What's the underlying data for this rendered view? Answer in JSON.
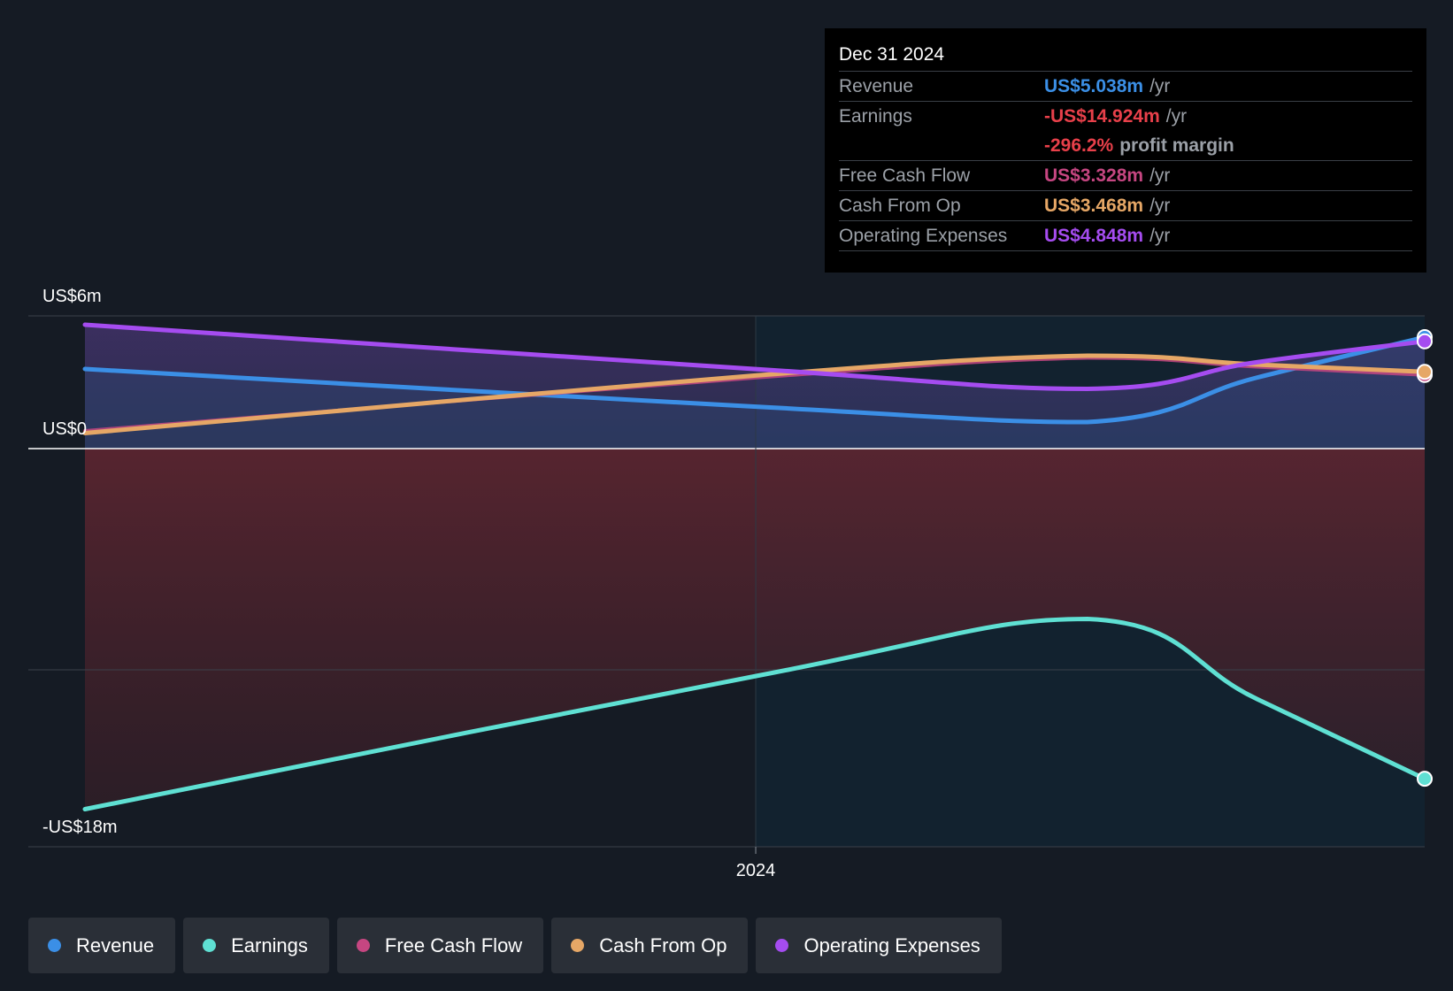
{
  "chart_data": {
    "type": "line",
    "title": "",
    "xlabel": "",
    "ylabel": "",
    "x": [
      "2022-12-31",
      "2023-12-31",
      "2024-06-30",
      "2024-09-30",
      "2024-12-31"
    ],
    "xticks": [
      "2024"
    ],
    "xtick_values": [
      "2024-01-01"
    ],
    "ylim": [
      -18,
      6
    ],
    "yticks": [
      {
        "label": "US$6m",
        "value": 6
      },
      {
        "label": "US$0",
        "value": 0
      },
      {
        "label": "-US$18m",
        "value": -18
      }
    ],
    "gridlines": [
      6,
      0,
      -10,
      -18
    ],
    "highlight_range": [
      "2024-01-01",
      "2024-12-31"
    ],
    "series": [
      {
        "name": "Revenue",
        "color": "#3b8fe6",
        "values": [
          3.6,
          1.9,
          1.2,
          3.2,
          5.038
        ]
      },
      {
        "name": "Earnings",
        "color": "#5fe0d3",
        "values": [
          -16.3,
          -10.3,
          -7.7,
          -11.3,
          -14.924
        ]
      },
      {
        "name": "Free Cash Flow",
        "color": "#c64681",
        "values": [
          0.8,
          3.2,
          4.1,
          3.7,
          3.328
        ]
      },
      {
        "name": "Cash From Op",
        "color": "#e6a766",
        "values": [
          0.7,
          3.3,
          4.2,
          3.8,
          3.468
        ]
      },
      {
        "name": "Operating Expenses",
        "color": "#a54cf0",
        "values": [
          5.6,
          3.6,
          2.7,
          3.9,
          4.848
        ]
      }
    ]
  },
  "tooltip": {
    "date": "Dec 31 2024",
    "rows": [
      {
        "name": "Revenue",
        "value": "US$5.038m",
        "unit": "/yr",
        "color": "#3b8fe6"
      },
      {
        "name": "Earnings",
        "value": "-US$14.924m",
        "unit": "/yr",
        "color": "#e8404a"
      },
      {
        "name": "",
        "value": "-296.2%",
        "unit": "profit margin",
        "color": "#e8404a"
      },
      {
        "name": "Free Cash Flow",
        "value": "US$3.328m",
        "unit": "/yr",
        "color": "#c64681"
      },
      {
        "name": "Cash From Op",
        "value": "US$3.468m",
        "unit": "/yr",
        "color": "#e6a766"
      },
      {
        "name": "Operating Expenses",
        "value": "US$4.848m",
        "unit": "/yr",
        "color": "#a54cf0"
      }
    ]
  },
  "legend": [
    {
      "label": "Revenue",
      "color": "#3b8fe6"
    },
    {
      "label": "Earnings",
      "color": "#5fe0d3"
    },
    {
      "label": "Free Cash Flow",
      "color": "#c64681"
    },
    {
      "label": "Cash From Op",
      "color": "#e6a766"
    },
    {
      "label": "Operating Expenses",
      "color": "#a54cf0"
    }
  ]
}
